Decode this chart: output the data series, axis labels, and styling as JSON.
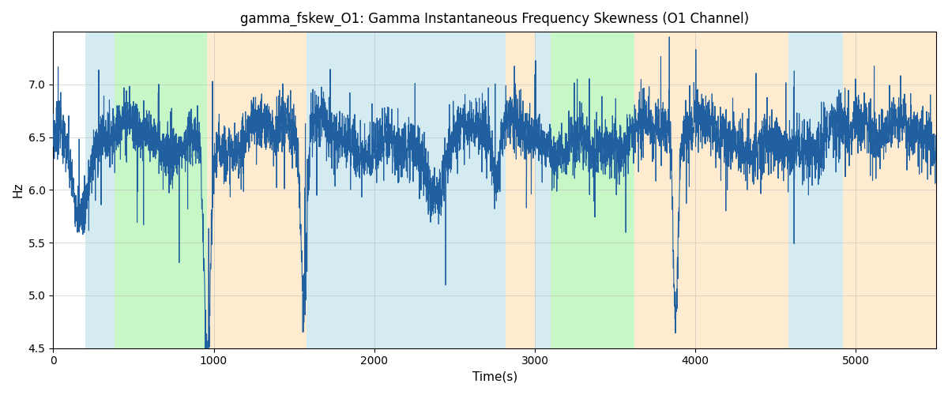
{
  "title": "gamma_fskew_O1: Gamma Instantaneous Frequency Skewness (O1 Channel)",
  "xlabel": "Time(s)",
  "ylabel": "Hz",
  "ylim": [
    4.5,
    7.5
  ],
  "xlim": [
    0,
    5500
  ],
  "line_color": "#2060a0",
  "line_width": 0.8,
  "bg_bands": [
    {
      "xmin": 200,
      "xmax": 380,
      "color": "#add8e6",
      "alpha": 0.5
    },
    {
      "xmin": 380,
      "xmax": 960,
      "color": "#90ee90",
      "alpha": 0.5
    },
    {
      "xmin": 960,
      "xmax": 1580,
      "color": "#ffd9a0",
      "alpha": 0.5
    },
    {
      "xmin": 1580,
      "xmax": 2820,
      "color": "#add8e6",
      "alpha": 0.5
    },
    {
      "xmin": 2820,
      "xmax": 3000,
      "color": "#ffd9a0",
      "alpha": 0.5
    },
    {
      "xmin": 3000,
      "xmax": 3100,
      "color": "#add8e6",
      "alpha": 0.5
    },
    {
      "xmin": 3100,
      "xmax": 3620,
      "color": "#90ee90",
      "alpha": 0.5
    },
    {
      "xmin": 3620,
      "xmax": 3780,
      "color": "#ffd9a0",
      "alpha": 0.5
    },
    {
      "xmin": 3780,
      "xmax": 4580,
      "color": "#ffd9a0",
      "alpha": 0.5
    },
    {
      "xmin": 4580,
      "xmax": 4920,
      "color": "#add8e6",
      "alpha": 0.5
    },
    {
      "xmin": 4920,
      "xmax": 5500,
      "color": "#ffd9a0",
      "alpha": 0.5
    }
  ],
  "yticks": [
    4.5,
    5.0,
    5.5,
    6.0,
    6.5,
    7.0
  ],
  "xticks": [
    0,
    1000,
    2000,
    3000,
    4000,
    5000
  ],
  "grid_color": "#b0b0b0",
  "grid_alpha": 0.5,
  "title_fontsize": 12,
  "label_fontsize": 11
}
